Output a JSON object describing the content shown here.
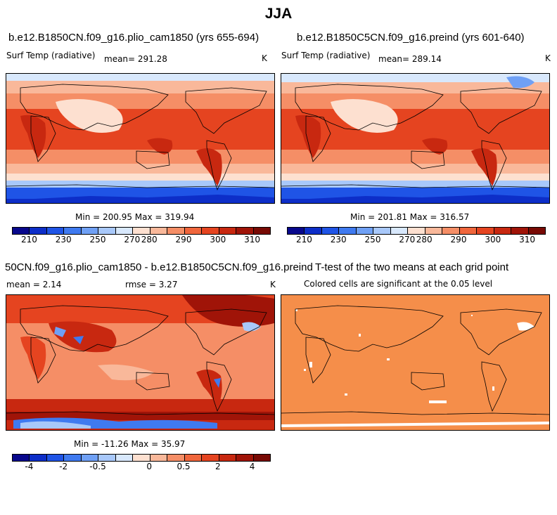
{
  "title": "JJA",
  "panels": {
    "p1": {
      "title": "b.e12.B1850CN.f09_g16.plio_cam1850 (yrs 655-694)",
      "var_label": "Surf Temp (radiative)",
      "mean_text": "mean= 291.28",
      "units": "K",
      "minmax": "Min = 200.95 Max = 319.94"
    },
    "p2": {
      "title": "b.e12.B1850C5CN.f09_g16.preind (yrs 601-640)",
      "var_label": "Surf Temp (radiative)",
      "mean_text": "mean= 289.14",
      "units": "K",
      "minmax": "Min = 201.81 Max = 316.57"
    },
    "p3": {
      "title": "50CN.f09_g16.plio_cam1850 - b.e12.B1850C5CN.f09_g16.preind",
      "mean_text": "mean =    2.14",
      "rmse_text": "rmse =    3.27",
      "units": "K",
      "minmax": "Min = -11.26 Max =  35.97"
    },
    "p4": {
      "title": "T-test of the two means at each grid point",
      "subtitle": "Colored cells are significant at the 0.05 level"
    }
  },
  "colorbars": {
    "temp": {
      "colors": [
        "#08088c",
        "#0d2ec8",
        "#1f54e6",
        "#3f7af0",
        "#6fa0f5",
        "#a8c8fa",
        "#d8e8fc",
        "#fde0d0",
        "#f9b89a",
        "#f58e66",
        "#f0663c",
        "#e54420",
        "#c82810",
        "#a01408",
        "#780a04"
      ],
      "labels": [
        "210",
        "230",
        "250",
        "270",
        "280",
        "290",
        "300",
        "310"
      ]
    },
    "diff": {
      "colors": [
        "#08088c",
        "#0d2ec8",
        "#1f54e6",
        "#3f7af0",
        "#6fa0f5",
        "#a8c8fa",
        "#d8e8fc",
        "#fde0d0",
        "#f9b89a",
        "#f58e66",
        "#f0663c",
        "#e54420",
        "#c82810",
        "#a01408",
        "#780a04"
      ],
      "labels": [
        "-4",
        "-2",
        "-0.5",
        "0",
        "0.5",
        "2",
        "4"
      ]
    }
  }
}
